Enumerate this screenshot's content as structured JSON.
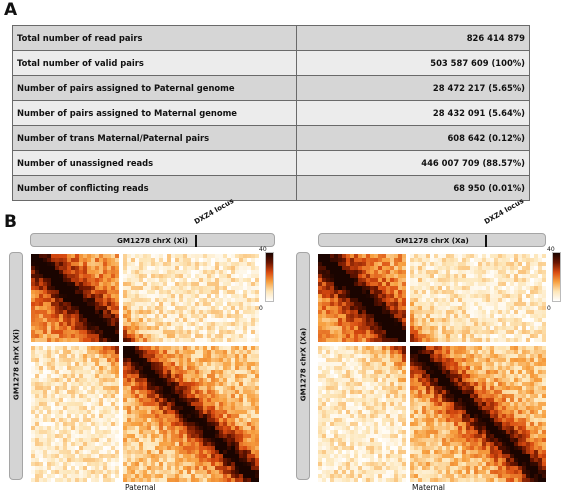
{
  "panel_a": {
    "letter": "A",
    "rows": [
      {
        "label": "Total number of read pairs",
        "value": "826 414 879"
      },
      {
        "label": "Total number of valid pairs",
        "value": "503 587 609 (100%)"
      },
      {
        "label": "Number of pairs assigned to Paternal genome",
        "value": "28 472 217 (5.65%)"
      },
      {
        "label": "Number of pairs assigned to Maternal genome",
        "value": "28 432 091 (5.64%)"
      },
      {
        "label": "Number of trans Maternal/Paternal pairs",
        "value": "608 642 (0.12%)"
      },
      {
        "label": "Number of unassigned reads",
        "value": "446 007 709 (88.57%)"
      },
      {
        "label": "Number of conflicting reads",
        "value": "68 950 (0.01%)"
      }
    ]
  },
  "panel_b": {
    "letter": "B",
    "left": {
      "top_label": "GM1278 chrX (Xi)",
      "side_label": "GM1278 chrX (Xi)",
      "locus": "DXZ4 locus",
      "caption": "Paternal",
      "cb_max": "40",
      "cb_min": "0"
    },
    "right": {
      "top_label": "GM1278 chrX (Xa)",
      "side_label": "GM1278 chrX (Xa)",
      "locus": "DXZ4 locus",
      "caption": "Maternal",
      "cb_max": "40",
      "cb_min": "0"
    }
  },
  "colors": {
    "heat_dark": "#1a0400",
    "heat_mid": "#d84a10",
    "heat_light": "#fde6b8",
    "bar_fill": "#d4d4d4"
  }
}
